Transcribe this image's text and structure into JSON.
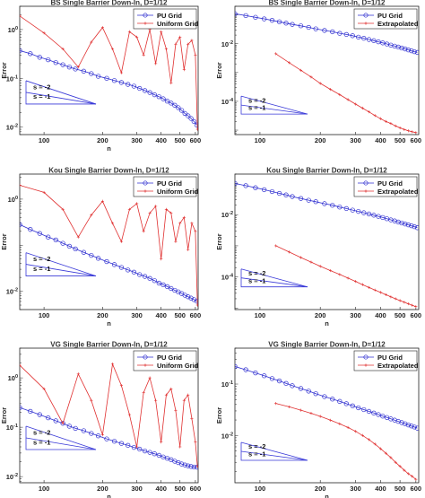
{
  "chart_data": [
    {
      "type": "line",
      "title": "BS Single Barrier Down-In, D=1/12",
      "xlabel": "n",
      "ylabel": "Error",
      "xscale": "log",
      "yscale": "log",
      "xlim": [
        75,
        620
      ],
      "ylim": [
        0.007,
        3.0
      ],
      "xticks": [
        "100",
        "200",
        "300",
        "400",
        "500",
        "600"
      ],
      "yticks": [
        {
          "v": 0.01,
          "label": "10^{-2}"
        },
        {
          "v": 0.1,
          "label": "10^{-1}"
        },
        {
          "v": 1,
          "label": "10^{0}"
        }
      ],
      "legend_position": "top-right",
      "slope_triangle": {
        "labels": [
          "s = -2",
          "s = -1"
        ]
      },
      "series": [
        {
          "name": "PU Grid",
          "color": "#2f2fd0",
          "marker": "circle",
          "x": [
            75,
            85,
            95,
            105,
            115,
            125,
            135,
            145,
            160,
            175,
            190,
            210,
            230,
            250,
            270,
            290,
            310,
            330,
            350,
            370,
            390,
            410,
            430,
            450,
            470,
            490,
            510,
            530,
            550,
            570,
            590,
            610
          ],
          "y": [
            0.37,
            0.32,
            0.27,
            0.24,
            0.21,
            0.19,
            0.17,
            0.155,
            0.14,
            0.125,
            0.11,
            0.1,
            0.09,
            0.082,
            0.075,
            0.069,
            0.062,
            0.056,
            0.051,
            0.046,
            0.042,
            0.038,
            0.034,
            0.031,
            0.028,
            0.025,
            0.022,
            0.019,
            0.017,
            0.015,
            0.013,
            0.011
          ]
        },
        {
          "name": "Uniform Grid",
          "color": "#e03030",
          "marker": "plus",
          "x": [
            75,
            100,
            125,
            150,
            175,
            200,
            225,
            250,
            275,
            300,
            325,
            350,
            375,
            400,
            425,
            450,
            475,
            500,
            525,
            550,
            575,
            600,
            615
          ],
          "y": [
            1.9,
            0.85,
            0.4,
            0.17,
            0.55,
            1.1,
            0.4,
            0.13,
            0.9,
            0.7,
            0.3,
            1.0,
            0.2,
            0.9,
            0.4,
            0.08,
            0.5,
            0.7,
            0.15,
            0.5,
            0.6,
            0.3,
            0.009
          ]
        }
      ]
    },
    {
      "type": "line",
      "title": "BS Single Barrier Down-In, D=1/12",
      "xlabel": "",
      "ylabel": "Error",
      "xscale": "log",
      "yscale": "log",
      "xlim": [
        75,
        620
      ],
      "ylim": [
        7e-06,
        0.2
      ],
      "xticks": [
        "100",
        "200",
        "300",
        "400",
        "500",
        "600"
      ],
      "yticks": [
        {
          "v": 0.0001,
          "label": "10^{-4}"
        },
        {
          "v": 0.01,
          "label": "10^{-2}"
        }
      ],
      "legend_position": "top-right",
      "slope_triangle": {
        "labels": [
          "s = -2",
          "s = -1"
        ]
      },
      "series": [
        {
          "name": "PU Grid",
          "color": "#2f2fd0",
          "marker": "circle",
          "x": [
            75,
            85,
            95,
            105,
            115,
            125,
            135,
            145,
            160,
            175,
            190,
            210,
            230,
            250,
            270,
            290,
            310,
            330,
            350,
            370,
            390,
            410,
            430,
            450,
            470,
            490,
            510,
            530,
            550,
            570,
            590,
            610
          ],
          "y": [
            0.11,
            0.095,
            0.083,
            0.073,
            0.065,
            0.058,
            0.052,
            0.047,
            0.042,
            0.037,
            0.033,
            0.029,
            0.026,
            0.023,
            0.021,
            0.019,
            0.017,
            0.0155,
            0.014,
            0.0128,
            0.0117,
            0.0107,
            0.0098,
            0.009,
            0.0083,
            0.0077,
            0.0071,
            0.0066,
            0.0061,
            0.0057,
            0.0053,
            0.005
          ]
        },
        {
          "name": "Extrapolated",
          "color": "#e03030",
          "marker": "plus",
          "x": [
            120,
            140,
            160,
            180,
            200,
            225,
            250,
            275,
            300,
            325,
            350,
            375,
            400,
            425,
            450,
            475,
            500,
            525,
            550,
            575,
            600
          ],
          "y": [
            0.0045,
            0.0022,
            0.0012,
            0.0007,
            0.00042,
            0.00026,
            0.00017,
            0.000115,
            8e-05,
            5.8e-05,
            4.3e-05,
            3.2e-05,
            2.5e-05,
            2e-05,
            1.7e-05,
            1.4e-05,
            1.2e-05,
            1.05e-05,
            9.5e-06,
            8.8e-06,
            8.2e-06
          ]
        }
      ]
    },
    {
      "type": "line",
      "title": "Kou Single Barrier Down-In, D=1/12",
      "xlabel": "n",
      "ylabel": "Error",
      "xscale": "log",
      "yscale": "log",
      "xlim": [
        75,
        620
      ],
      "ylim": [
        0.004,
        3.5
      ],
      "xticks": [
        "100",
        "200",
        "300",
        "400",
        "500",
        "600"
      ],
      "yticks": [
        {
          "v": 0.01,
          "label": "10^{-2}"
        },
        {
          "v": 1,
          "label": "10^{0}"
        }
      ],
      "legend_position": "top-right",
      "slope_triangle": {
        "labels": [
          "s = -2",
          "s = -1"
        ]
      },
      "series": [
        {
          "name": "PU Grid",
          "color": "#2f2fd0",
          "marker": "circle",
          "x": [
            75,
            85,
            95,
            105,
            115,
            125,
            135,
            145,
            160,
            175,
            190,
            210,
            230,
            250,
            270,
            290,
            310,
            330,
            350,
            370,
            390,
            410,
            430,
            450,
            470,
            490,
            510,
            530,
            550,
            570,
            590,
            610
          ],
          "y": [
            0.28,
            0.22,
            0.18,
            0.15,
            0.13,
            0.11,
            0.095,
            0.083,
            0.07,
            0.06,
            0.052,
            0.044,
            0.038,
            0.033,
            0.029,
            0.026,
            0.023,
            0.021,
            0.019,
            0.017,
            0.015,
            0.0138,
            0.0126,
            0.0115,
            0.0105,
            0.0097,
            0.0089,
            0.0082,
            0.0076,
            0.0071,
            0.0066,
            0.0061
          ]
        },
        {
          "name": "Uniform Grid",
          "color": "#e03030",
          "marker": "plus",
          "x": [
            75,
            100,
            125,
            150,
            175,
            200,
            225,
            250,
            275,
            300,
            325,
            350,
            375,
            400,
            425,
            450,
            475,
            500,
            525,
            550,
            575,
            600,
            615
          ],
          "y": [
            2.0,
            1.4,
            0.6,
            0.15,
            0.45,
            0.9,
            0.3,
            0.12,
            0.6,
            0.8,
            0.2,
            0.5,
            0.7,
            0.05,
            0.6,
            0.5,
            0.12,
            0.3,
            0.4,
            0.08,
            0.3,
            0.2,
            0.005
          ]
        }
      ]
    },
    {
      "type": "line",
      "title": "Kou Single Barrier Down-In, D=1/12",
      "xlabel": "n",
      "ylabel": "Error",
      "xscale": "log",
      "yscale": "log",
      "xlim": [
        75,
        620
      ],
      "ylim": [
        9e-06,
        0.2
      ],
      "xticks": [
        "100",
        "200",
        "300",
        "400",
        "500",
        "600"
      ],
      "yticks": [
        {
          "v": 0.0001,
          "label": "10^{-4}"
        },
        {
          "v": 0.01,
          "label": "10^{-2}"
        }
      ],
      "legend_position": "top-right",
      "slope_triangle": {
        "labels": [
          "s = -2",
          "s = -1"
        ]
      },
      "series": [
        {
          "name": "PU Grid",
          "color": "#2f2fd0",
          "marker": "circle",
          "x": [
            75,
            85,
            95,
            105,
            115,
            125,
            135,
            145,
            160,
            175,
            190,
            210,
            230,
            250,
            270,
            290,
            310,
            330,
            350,
            370,
            390,
            410,
            430,
            450,
            470,
            490,
            510,
            530,
            550,
            570,
            590,
            610
          ],
          "y": [
            0.1,
            0.085,
            0.073,
            0.063,
            0.055,
            0.048,
            0.043,
            0.038,
            0.033,
            0.029,
            0.026,
            0.0225,
            0.02,
            0.0175,
            0.0157,
            0.014,
            0.0127,
            0.0115,
            0.0105,
            0.0096,
            0.0088,
            0.0081,
            0.0074,
            0.0068,
            0.0063,
            0.0058,
            0.0054,
            0.005,
            0.0047,
            0.0044,
            0.0041,
            0.0038
          ]
        },
        {
          "name": "Extrapolated",
          "color": "#e03030",
          "marker": "plus",
          "x": [
            120,
            140,
            160,
            180,
            200,
            225,
            250,
            275,
            300,
            325,
            350,
            375,
            400,
            425,
            450,
            475,
            500,
            525,
            550,
            575,
            600
          ],
          "y": [
            0.001,
            0.00063,
            0.00042,
            0.0003,
            0.00022,
            0.00016,
            0.00012,
            9.2e-05,
            7.2e-05,
            5.7e-05,
            4.6e-05,
            3.8e-05,
            3.2e-05,
            2.7e-05,
            2.3e-05,
            2e-05,
            1.75e-05,
            1.55e-05,
            1.38e-05,
            1.24e-05,
            1.12e-05
          ]
        }
      ]
    },
    {
      "type": "line",
      "title": "VG Single Barrier Down-In, D=1/12",
      "xlabel": "n",
      "ylabel": "Error",
      "xscale": "log",
      "yscale": "log",
      "xlim": [
        75,
        620
      ],
      "ylim": [
        0.0075,
        4.0
      ],
      "xticks": [
        "100",
        "200",
        "300",
        "400",
        "500",
        "600"
      ],
      "yticks": [
        {
          "v": 0.01,
          "label": "10^{-2}"
        },
        {
          "v": 0.1,
          "label": "10^{-1}"
        },
        {
          "v": 1,
          "label": "10^{0}"
        }
      ],
      "legend_position": "top-right",
      "slope_triangle": {
        "labels": [
          "s = -2",
          "s = -1"
        ]
      },
      "series": [
        {
          "name": "PU Grid",
          "color": "#2f2fd0",
          "marker": "circle",
          "x": [
            75,
            85,
            95,
            105,
            115,
            125,
            135,
            145,
            160,
            175,
            190,
            210,
            230,
            250,
            270,
            290,
            310,
            330,
            350,
            370,
            390,
            410,
            430,
            450,
            470,
            490,
            510,
            530,
            550,
            570,
            590,
            610
          ],
          "y": [
            0.25,
            0.21,
            0.18,
            0.155,
            0.135,
            0.12,
            0.105,
            0.095,
            0.085,
            0.075,
            0.067,
            0.058,
            0.052,
            0.047,
            0.043,
            0.039,
            0.036,
            0.033,
            0.031,
            0.029,
            0.027,
            0.025,
            0.0235,
            0.022,
            0.0205,
            0.0192,
            0.018,
            0.0172,
            0.0165,
            0.016,
            0.0156,
            0.0155
          ]
        },
        {
          "name": "Uniform Grid",
          "color": "#e03030",
          "marker": "plus",
          "x": [
            75,
            100,
            125,
            150,
            175,
            200,
            225,
            250,
            275,
            300,
            325,
            350,
            375,
            400,
            425,
            450,
            475,
            500,
            525,
            550,
            575,
            600,
            615
          ],
          "y": [
            1.8,
            0.6,
            0.12,
            1.2,
            0.35,
            0.07,
            1.9,
            0.7,
            0.18,
            0.04,
            0.5,
            1.0,
            0.35,
            0.05,
            0.45,
            0.6,
            0.22,
            0.04,
            0.35,
            0.45,
            0.15,
            0.05,
            0.016
          ]
        }
      ]
    },
    {
      "type": "line",
      "title": "VG Single Barrier Down-In, D=1/12",
      "xlabel": "n",
      "ylabel": "Error",
      "xscale": "log",
      "yscale": "log",
      "xlim": [
        75,
        620
      ],
      "ylim": [
        0.0012,
        0.5
      ],
      "xticks": [
        "100",
        "200",
        "300",
        "400",
        "500",
        "600"
      ],
      "yticks": [
        {
          "v": 0.01,
          "label": "10^{-2}"
        },
        {
          "v": 0.1,
          "label": "10^{-1}"
        }
      ],
      "legend_position": "top-right",
      "slope_triangle": {
        "labels": [
          "s = -2",
          "s = -1"
        ]
      },
      "series": [
        {
          "name": "PU Grid",
          "color": "#2f2fd0",
          "marker": "circle",
          "x": [
            75,
            85,
            95,
            105,
            115,
            125,
            135,
            145,
            160,
            175,
            190,
            210,
            230,
            250,
            270,
            290,
            310,
            330,
            350,
            370,
            390,
            410,
            430,
            450,
            470,
            490,
            510,
            530,
            550,
            570,
            590,
            610
          ],
          "y": [
            0.22,
            0.19,
            0.165,
            0.145,
            0.128,
            0.115,
            0.103,
            0.093,
            0.082,
            0.073,
            0.065,
            0.057,
            0.051,
            0.046,
            0.0415,
            0.0377,
            0.0345,
            0.0318,
            0.0294,
            0.0273,
            0.0255,
            0.0238,
            0.0224,
            0.021,
            0.0199,
            0.0188,
            0.0178,
            0.0169,
            0.016,
            0.0153,
            0.0146,
            0.0139
          ]
        },
        {
          "name": "Extrapolated",
          "color": "#e03030",
          "marker": "plus",
          "x": [
            120,
            140,
            160,
            180,
            200,
            225,
            250,
            275,
            300,
            325,
            350,
            375,
            400,
            425,
            450,
            475,
            500,
            525,
            550,
            575,
            600
          ],
          "y": [
            0.042,
            0.036,
            0.031,
            0.027,
            0.0235,
            0.0198,
            0.0168,
            0.0143,
            0.012,
            0.01,
            0.0083,
            0.0068,
            0.0055,
            0.0045,
            0.0037,
            0.003,
            0.0025,
            0.0021,
            0.0018,
            0.0016,
            0.0014
          ]
        }
      ]
    }
  ]
}
